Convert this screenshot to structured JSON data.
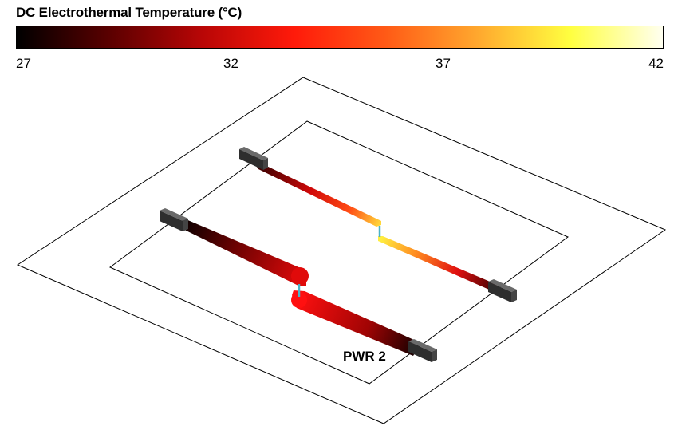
{
  "legend": {
    "title": "DC Electrothermal Temperature (°C)",
    "ticks": [
      "27",
      "32",
      "37",
      "42"
    ],
    "range": [
      27,
      42
    ],
    "gradient_stops": [
      "#000000",
      "#5a0000",
      "#b80606",
      "#ff1a0a",
      "#ff5a16",
      "#ffa82e",
      "#ffff40",
      "#fffff0"
    ]
  },
  "scene": {
    "net_label": "PWR 2",
    "board_color": "#000000",
    "connector_color": "#3a3a3a",
    "via_color": "#4ab3c7"
  }
}
